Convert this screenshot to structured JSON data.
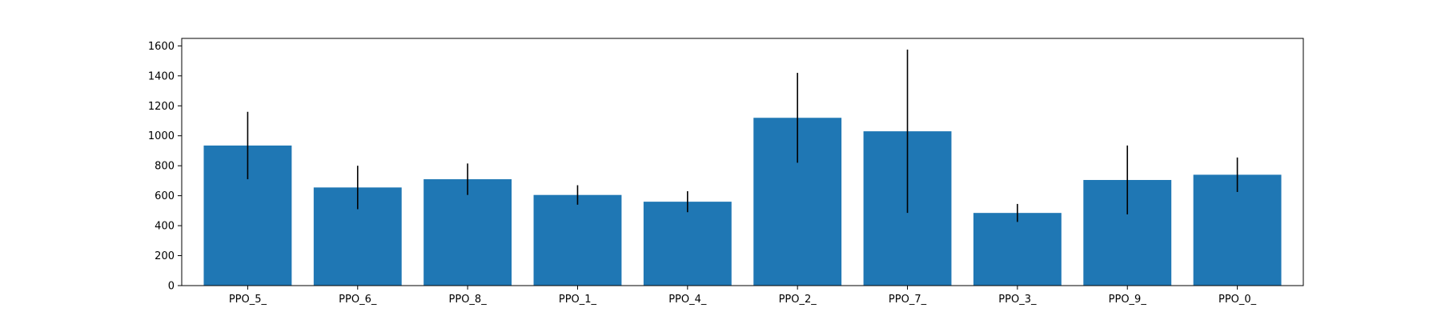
{
  "chart_data": {
    "type": "bar",
    "categories": [
      "PPO_5_",
      "PPO_6_",
      "PPO_8_",
      "PPO_1_",
      "PPO_4_",
      "PPO_2_",
      "PPO_7_",
      "PPO_3_",
      "PPO_9_",
      "PPO_0_"
    ],
    "values": [
      935,
      655,
      710,
      605,
      560,
      1120,
      1030,
      485,
      705,
      740
    ],
    "errors": [
      225,
      145,
      105,
      65,
      70,
      300,
      545,
      60,
      230,
      115
    ],
    "title": "",
    "xlabel": "",
    "ylabel": "",
    "ylim": [
      0,
      1650
    ],
    "yticks": [
      0,
      200,
      400,
      600,
      800,
      1000,
      1200,
      1400,
      1600
    ],
    "ytick_labels": [
      "0",
      "200",
      "400",
      "600",
      "800",
      "1000",
      "1200",
      "1400",
      "1600"
    ],
    "grid": false,
    "colors": {
      "bar": "#1f77b4",
      "error": "#000000",
      "axis": "#000000"
    }
  }
}
